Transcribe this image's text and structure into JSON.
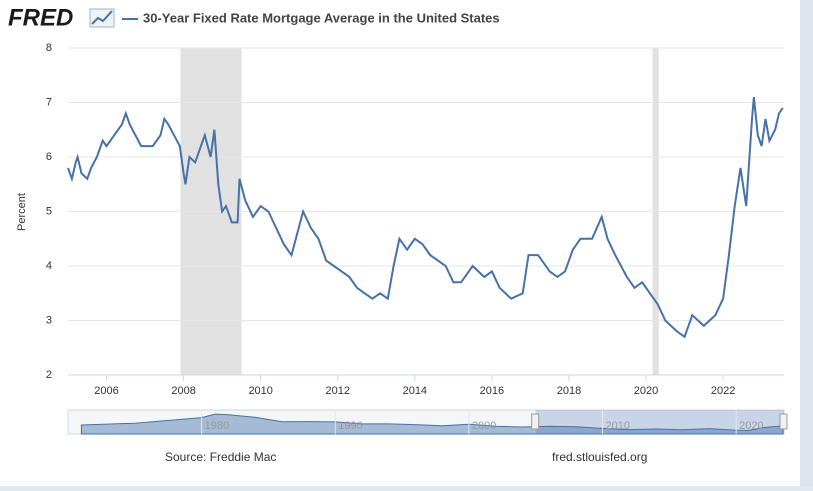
{
  "header": {
    "logo": "FRED"
  },
  "chart_data": {
    "type": "line",
    "y_label": "Percent",
    "x": [
      2005.0,
      2005.1,
      2005.2,
      2005.25,
      2005.35,
      2005.5,
      2005.6,
      2005.75,
      2005.9,
      2006.0,
      2006.2,
      2006.4,
      2006.5,
      2006.6,
      2006.75,
      2006.9,
      2007.0,
      2007.2,
      2007.4,
      2007.5,
      2007.6,
      2007.75,
      2007.9,
      2008.0,
      2008.05,
      2008.15,
      2008.3,
      2008.45,
      2008.55,
      2008.7,
      2008.8,
      2008.9,
      2009.0,
      2009.1,
      2009.25,
      2009.4,
      2009.45,
      2009.6,
      2009.8,
      2010.0,
      2010.2,
      2010.4,
      2010.6,
      2010.8,
      2010.95,
      2011.1,
      2011.3,
      2011.5,
      2011.7,
      2011.9,
      2012.1,
      2012.3,
      2012.5,
      2012.7,
      2012.9,
      2013.1,
      2013.3,
      2013.45,
      2013.6,
      2013.8,
      2014.0,
      2014.2,
      2014.4,
      2014.6,
      2014.8,
      2015.0,
      2015.2,
      2015.4,
      2015.5,
      2015.8,
      2016.0,
      2016.2,
      2016.5,
      2016.8,
      2016.95,
      2017.2,
      2017.5,
      2017.7,
      2017.9,
      2018.1,
      2018.3,
      2018.6,
      2018.85,
      2019.0,
      2019.2,
      2019.5,
      2019.7,
      2019.9,
      2020.1,
      2020.3,
      2020.5,
      2020.8,
      2021.0,
      2021.2,
      2021.5,
      2021.8,
      2022.0,
      2022.15,
      2022.3,
      2022.45,
      2022.6,
      2022.75,
      2022.8,
      2022.9,
      2023.0,
      2023.1,
      2023.2,
      2023.35,
      2023.45,
      2023.55
    ],
    "series": [
      {
        "name": "30-Year Fixed Rate Mortgage Average in the United States",
        "color": "#4572a7",
        "values": [
          5.8,
          5.6,
          5.9,
          6.0,
          5.7,
          5.6,
          5.8,
          6.0,
          6.3,
          6.2,
          6.4,
          6.6,
          6.8,
          6.6,
          6.4,
          6.2,
          6.2,
          6.2,
          6.4,
          6.7,
          6.6,
          6.4,
          6.2,
          5.7,
          5.5,
          6.0,
          5.9,
          6.2,
          6.4,
          6.0,
          6.5,
          5.5,
          5.0,
          5.1,
          4.8,
          4.8,
          5.6,
          5.2,
          4.9,
          5.1,
          5.0,
          4.7,
          4.4,
          4.2,
          4.6,
          5.0,
          4.7,
          4.5,
          4.1,
          4.0,
          3.9,
          3.8,
          3.6,
          3.5,
          3.4,
          3.5,
          3.4,
          4.0,
          4.5,
          4.3,
          4.5,
          4.4,
          4.2,
          4.1,
          4.0,
          3.7,
          3.7,
          3.9,
          4.0,
          3.8,
          3.9,
          3.6,
          3.4,
          3.5,
          4.2,
          4.2,
          3.9,
          3.8,
          3.9,
          4.3,
          4.5,
          4.5,
          4.9,
          4.5,
          4.2,
          3.8,
          3.6,
          3.7,
          3.5,
          3.3,
          3.0,
          2.8,
          2.7,
          3.1,
          2.9,
          3.1,
          3.4,
          4.2,
          5.1,
          5.8,
          5.1,
          6.7,
          7.1,
          6.4,
          6.2,
          6.7,
          6.3,
          6.5,
          6.8,
          6.9
        ]
      }
    ],
    "recessions": [
      [
        2007.92,
        2009.5
      ],
      [
        2020.17,
        2020.33
      ]
    ],
    "recession_color": "#e1e1e1",
    "xlim": [
      2005,
      2023.58
    ],
    "xticks": [
      2006,
      2008,
      2010,
      2012,
      2014,
      2016,
      2018,
      2020,
      2022
    ],
    "ylim": [
      2,
      8
    ],
    "yticks": [
      2,
      3,
      4,
      5,
      6,
      7,
      8
    ],
    "grid": true,
    "navigator": {
      "x": [
        1971,
        1975,
        1980,
        1981,
        1982,
        1984,
        1986,
        1988,
        1990,
        1992,
        1994,
        1996,
        1998,
        2000,
        2002,
        2004,
        2006,
        2008,
        2010,
        2012,
        2014,
        2016,
        2018,
        2020,
        2021,
        2022,
        2023.5
      ],
      "values": [
        7.5,
        9.0,
        13.7,
        16.6,
        16.0,
        13.9,
        10.2,
        10.3,
        10.1,
        8.4,
        8.4,
        7.8,
        6.9,
        8.1,
        6.5,
        5.8,
        6.4,
        6.0,
        4.7,
        3.7,
        4.2,
        3.6,
        4.5,
        3.1,
        3.0,
        5.3,
        6.8
      ],
      "xlim": [
        1970,
        2023.58
      ],
      "ylim": [
        0,
        20
      ],
      "xticks": [
        1980,
        1990,
        2000,
        2010,
        2020
      ],
      "selection": [
        2005,
        2023.58
      ]
    }
  },
  "footer": {
    "source": "Source: Freddie Mac",
    "url": "fred.stlouisfed.org"
  }
}
